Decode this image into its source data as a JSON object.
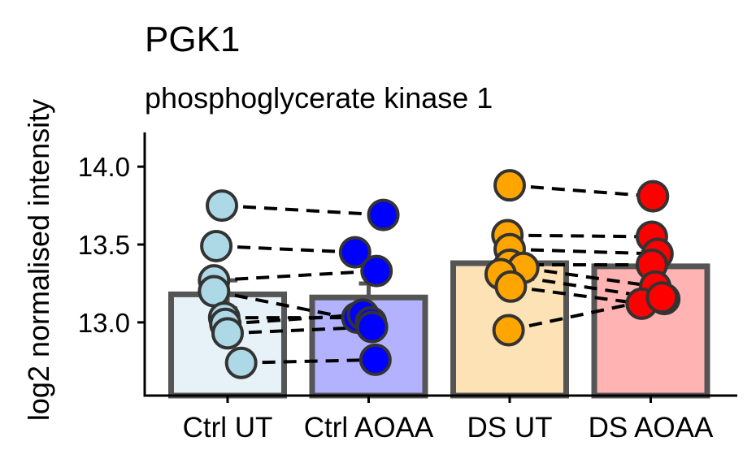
{
  "chart_data": {
    "type": "bar",
    "title": "PGK1",
    "subtitle": "phosphoglycerate kinase 1",
    "ylabel": "log2 normalised intensity",
    "xlabel": "",
    "ylim": [
      12.53,
      14.22
    ],
    "yticks": [
      13.0,
      13.5,
      14.0
    ],
    "ytick_labels": [
      "13.0",
      "13.5",
      "14.0"
    ],
    "categories": [
      "Ctrl UT",
      "Ctrl AOAA",
      "DS UT",
      "DS AOAA"
    ],
    "values": [
      13.18,
      13.16,
      13.38,
      13.36
    ],
    "errors": [
      0.09,
      0.09,
      0.09,
      0.09
    ],
    "bar_fill": [
      "#e6f2f8",
      "#b2b2ff",
      "#fce2b5",
      "#ffb3b3"
    ],
    "point_fill": [
      "#add8e6",
      "#0000ff",
      "#ffa500",
      "#ff0000"
    ],
    "points": [
      [
        {
          "x": -0.05,
          "y": 13.75
        },
        {
          "x": -0.1,
          "y": 13.49
        },
        {
          "x": -0.12,
          "y": 13.27
        },
        {
          "x": -0.12,
          "y": 13.2
        },
        {
          "x": -0.03,
          "y": 13.03
        },
        {
          "x": -0.02,
          "y": 12.99
        },
        {
          "x": 0.0,
          "y": 12.93
        },
        {
          "x": 0.12,
          "y": 12.74
        }
      ],
      [
        {
          "x": 0.13,
          "y": 13.69
        },
        {
          "x": -0.12,
          "y": 13.45
        },
        {
          "x": 0.07,
          "y": 13.33
        },
        {
          "x": -0.1,
          "y": 13.03
        },
        {
          "x": -0.05,
          "y": 13.05
        },
        {
          "x": 0.02,
          "y": 13.0
        },
        {
          "x": 0.03,
          "y": 12.97
        },
        {
          "x": 0.06,
          "y": 12.76
        }
      ],
      [
        {
          "x": 0.0,
          "y": 13.88
        },
        {
          "x": -0.02,
          "y": 13.56
        },
        {
          "x": 0.0,
          "y": 13.47
        },
        {
          "x": 0.0,
          "y": 13.37
        },
        {
          "x": 0.12,
          "y": 13.35
        },
        {
          "x": -0.08,
          "y": 13.31
        },
        {
          "x": 0.01,
          "y": 13.23
        },
        {
          "x": -0.01,
          "y": 12.95
        }
      ],
      [
        {
          "x": 0.02,
          "y": 13.81
        },
        {
          "x": 0.01,
          "y": 13.55
        },
        {
          "x": 0.06,
          "y": 13.44
        },
        {
          "x": 0.01,
          "y": 13.37
        },
        {
          "x": 0.04,
          "y": 13.23
        },
        {
          "x": 0.12,
          "y": 13.15
        },
        {
          "x": -0.08,
          "y": 13.12
        },
        {
          "x": 0.1,
          "y": 13.16
        }
      ]
    ],
    "paired_lines": [
      {
        "from": 0,
        "to": 1,
        "pairs": [
          [
            0,
            0
          ],
          [
            1,
            1
          ],
          [
            2,
            2
          ],
          [
            3,
            5
          ],
          [
            4,
            3
          ],
          [
            5,
            4
          ],
          [
            6,
            6
          ],
          [
            7,
            7
          ]
        ]
      },
      {
        "from": 2,
        "to": 3,
        "pairs": [
          [
            0,
            0
          ],
          [
            1,
            1
          ],
          [
            2,
            2
          ],
          [
            3,
            3
          ],
          [
            4,
            4
          ],
          [
            5,
            5
          ],
          [
            6,
            6
          ],
          [
            7,
            7
          ]
        ]
      }
    ],
    "grid": false,
    "legend": "none"
  }
}
